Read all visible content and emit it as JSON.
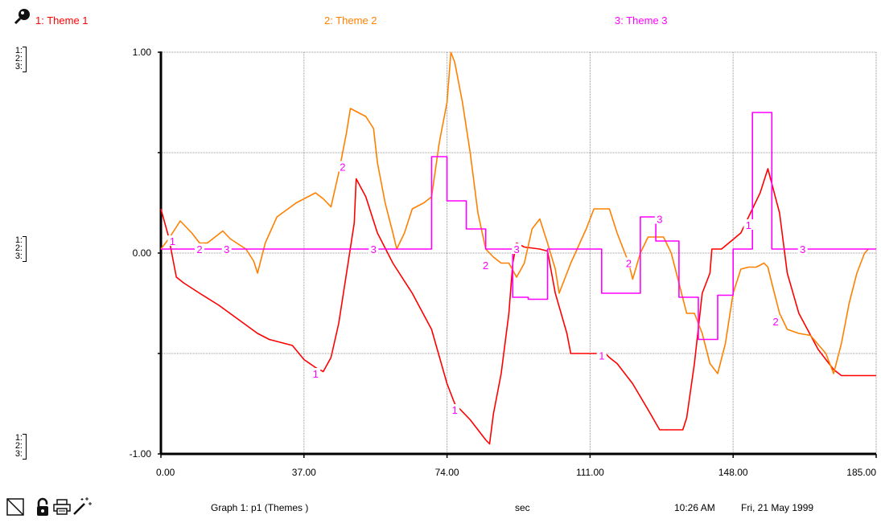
{
  "legend": [
    {
      "label": "1: Theme 1",
      "color": "#ff0000"
    },
    {
      "label": "2: Theme 2",
      "color": "#ff8000"
    },
    {
      "label": "3: Theme 3",
      "color": "#ff00ff"
    }
  ],
  "side_scales": [
    "1:",
    "2:",
    "3:"
  ],
  "footer": {
    "graph_title": "Graph 1: p1 (Themes )",
    "units": "sec",
    "time": "10:26 AM",
    "date": "Fri, 21 May 1999"
  },
  "icons": [
    "magnifier-icon",
    "pencil-icon",
    "lock-icon",
    "printer-icon",
    "magic-wand-icon"
  ],
  "chart_data": {
    "type": "line",
    "xlim": [
      0,
      185
    ],
    "ylim": [
      -1,
      1
    ],
    "x_ticks": [
      "0.00",
      "37.00",
      "74.00",
      "111.00",
      "148.00",
      "185.00"
    ],
    "y_ticks": [
      "1.00",
      "0.00",
      "-1.00"
    ],
    "grid": true,
    "series": [
      {
        "name": "Theme 1",
        "color": "#ff0000",
        "marker": "1",
        "points": [
          [
            0,
            0.22
          ],
          [
            1,
            0.15
          ],
          [
            2,
            0.08
          ],
          [
            4,
            -0.12
          ],
          [
            6,
            -0.15
          ],
          [
            10,
            -0.2
          ],
          [
            15,
            -0.26
          ],
          [
            20,
            -0.33
          ],
          [
            25,
            -0.4
          ],
          [
            28,
            -0.43
          ],
          [
            30,
            -0.44
          ],
          [
            34,
            -0.46
          ],
          [
            37,
            -0.53
          ],
          [
            40,
            -0.57
          ],
          [
            42,
            -0.59
          ],
          [
            44,
            -0.52
          ],
          [
            46,
            -0.35
          ],
          [
            48,
            -0.1
          ],
          [
            50,
            0.15
          ],
          [
            50.5,
            0.37
          ],
          [
            53,
            0.28
          ],
          [
            56,
            0.1
          ],
          [
            60,
            -0.05
          ],
          [
            65,
            -0.2
          ],
          [
            70,
            -0.38
          ],
          [
            74,
            -0.65
          ],
          [
            76,
            -0.75
          ],
          [
            80,
            -0.83
          ],
          [
            84,
            -0.93
          ],
          [
            85,
            -0.95
          ],
          [
            86,
            -0.8
          ],
          [
            88,
            -0.6
          ],
          [
            90,
            -0.3
          ],
          [
            91,
            -0.05
          ],
          [
            92,
            0.05
          ],
          [
            94,
            0.03
          ],
          [
            98,
            0.02
          ],
          [
            100,
            0.01
          ],
          [
            102,
            -0.2
          ],
          [
            105,
            -0.4
          ],
          [
            106,
            -0.5
          ],
          [
            110,
            -0.5
          ],
          [
            115,
            -0.5
          ],
          [
            116,
            -0.52
          ],
          [
            118,
            -0.55
          ],
          [
            122,
            -0.65
          ],
          [
            126,
            -0.78
          ],
          [
            129,
            -0.88
          ],
          [
            132,
            -0.88
          ],
          [
            135,
            -0.88
          ],
          [
            136,
            -0.82
          ],
          [
            138,
            -0.55
          ],
          [
            140,
            -0.2
          ],
          [
            142,
            -0.1
          ],
          [
            142.5,
            0.02
          ],
          [
            145,
            0.02
          ],
          [
            150,
            0.1
          ],
          [
            155,
            0.3
          ],
          [
            157,
            0.42
          ],
          [
            160,
            0.2
          ],
          [
            162,
            -0.1
          ],
          [
            165,
            -0.3
          ],
          [
            170,
            -0.48
          ],
          [
            174,
            -0.58
          ],
          [
            176,
            -0.61
          ],
          [
            180,
            -0.61
          ],
          [
            185,
            -0.61
          ]
        ]
      },
      {
        "name": "Theme 2",
        "color": "#ff8000",
        "marker": "2",
        "points": [
          [
            0,
            0.02
          ],
          [
            2,
            0.07
          ],
          [
            5,
            0.16
          ],
          [
            8,
            0.1
          ],
          [
            10,
            0.05
          ],
          [
            12,
            0.05
          ],
          [
            14,
            0.08
          ],
          [
            16,
            0.11
          ],
          [
            18,
            0.07
          ],
          [
            22,
            0.02
          ],
          [
            24,
            -0.04
          ],
          [
            25,
            -0.1
          ],
          [
            27,
            0.05
          ],
          [
            30,
            0.18
          ],
          [
            35,
            0.25
          ],
          [
            40,
            0.3
          ],
          [
            42,
            0.27
          ],
          [
            44,
            0.23
          ],
          [
            46,
            0.4
          ],
          [
            48,
            0.6
          ],
          [
            49,
            0.72
          ],
          [
            53,
            0.68
          ],
          [
            55,
            0.62
          ],
          [
            56,
            0.45
          ],
          [
            58,
            0.25
          ],
          [
            60,
            0.1
          ],
          [
            61,
            0.02
          ],
          [
            63,
            0.1
          ],
          [
            65,
            0.22
          ],
          [
            68,
            0.25
          ],
          [
            70,
            0.28
          ],
          [
            72,
            0.55
          ],
          [
            74,
            0.75
          ],
          [
            75,
            1.0
          ],
          [
            76,
            0.95
          ],
          [
            78,
            0.75
          ],
          [
            80,
            0.5
          ],
          [
            82,
            0.2
          ],
          [
            84,
            0.02
          ],
          [
            86,
            -0.02
          ],
          [
            88,
            -0.05
          ],
          [
            90,
            -0.05
          ],
          [
            92,
            -0.12
          ],
          [
            94,
            -0.05
          ],
          [
            96,
            0.12
          ],
          [
            98,
            0.17
          ],
          [
            100,
            0.05
          ],
          [
            102,
            -0.08
          ],
          [
            103,
            -0.2
          ],
          [
            106,
            -0.05
          ],
          [
            110,
            0.12
          ],
          [
            112,
            0.22
          ],
          [
            116,
            0.22
          ],
          [
            118,
            0.1
          ],
          [
            121,
            -0.05
          ],
          [
            122,
            -0.13
          ],
          [
            124,
            0.0
          ],
          [
            126,
            0.08
          ],
          [
            128,
            0.08
          ],
          [
            130,
            0.08
          ],
          [
            132,
            0.0
          ],
          [
            134,
            -0.15
          ],
          [
            136,
            -0.3
          ],
          [
            138,
            -0.3
          ],
          [
            140,
            -0.4
          ],
          [
            142,
            -0.55
          ],
          [
            144,
            -0.6
          ],
          [
            146,
            -0.45
          ],
          [
            148,
            -0.2
          ],
          [
            150,
            -0.08
          ],
          [
            152,
            -0.07
          ],
          [
            154,
            -0.07
          ],
          [
            156,
            -0.05
          ],
          [
            157,
            -0.07
          ],
          [
            158,
            -0.15
          ],
          [
            160,
            -0.3
          ],
          [
            162,
            -0.38
          ],
          [
            165,
            -0.4
          ],
          [
            168,
            -0.41
          ],
          [
            172,
            -0.5
          ],
          [
            174,
            -0.6
          ],
          [
            176,
            -0.45
          ],
          [
            178,
            -0.25
          ],
          [
            180,
            -0.1
          ],
          [
            182,
            0.0
          ],
          [
            183,
            0.02
          ]
        ]
      },
      {
        "name": "Theme 3",
        "color": "#ff00ff",
        "marker": "3",
        "points": [
          [
            0,
            0.02
          ],
          [
            70,
            0.02
          ],
          [
            70,
            0.48
          ],
          [
            74,
            0.48
          ],
          [
            74,
            0.26
          ],
          [
            79,
            0.26
          ],
          [
            79,
            0.12
          ],
          [
            84,
            0.12
          ],
          [
            84,
            0.02
          ],
          [
            91,
            0.02
          ],
          [
            91,
            -0.22
          ],
          [
            95,
            -0.22
          ],
          [
            95,
            -0.23
          ],
          [
            100,
            -0.23
          ],
          [
            100,
            0.02
          ],
          [
            114,
            0.02
          ],
          [
            114,
            -0.2
          ],
          [
            124,
            -0.2
          ],
          [
            124,
            0.18
          ],
          [
            128,
            0.18
          ],
          [
            128,
            0.06
          ],
          [
            134,
            0.06
          ],
          [
            134,
            -0.22
          ],
          [
            139,
            -0.22
          ],
          [
            139,
            -0.43
          ],
          [
            144,
            -0.43
          ],
          [
            144,
            -0.21
          ],
          [
            148,
            -0.21
          ],
          [
            148,
            0.02
          ],
          [
            153,
            0.02
          ],
          [
            153,
            0.7
          ],
          [
            158,
            0.7
          ],
          [
            158,
            0.02
          ],
          [
            185,
            0.02
          ]
        ]
      }
    ],
    "labels": [
      {
        "series": 1,
        "text": "1",
        "x": 3,
        "y": 0.06
      },
      {
        "series": 1,
        "text": "1",
        "x": 40,
        "y": -0.6
      },
      {
        "series": 1,
        "text": "1",
        "x": 76,
        "y": -0.78
      },
      {
        "series": 1,
        "text": "1",
        "x": 114,
        "y": -0.51
      },
      {
        "series": 1,
        "text": "1",
        "x": 152,
        "y": 0.14
      },
      {
        "series": 2,
        "text": "2",
        "x": 10,
        "y": 0.02
      },
      {
        "series": 2,
        "text": "2",
        "x": 47,
        "y": 0.43
      },
      {
        "series": 2,
        "text": "2",
        "x": 84,
        "y": -0.06
      },
      {
        "series": 2,
        "text": "2",
        "x": 121,
        "y": -0.05
      },
      {
        "series": 2,
        "text": "2",
        "x": 159,
        "y": -0.34
      },
      {
        "series": 3,
        "text": "3",
        "x": 17,
        "y": 0.02
      },
      {
        "series": 3,
        "text": "3",
        "x": 55,
        "y": 0.02
      },
      {
        "series": 3,
        "text": "3",
        "x": 92,
        "y": 0.02
      },
      {
        "series": 3,
        "text": "3",
        "x": 129,
        "y": 0.17
      },
      {
        "series": 3,
        "text": "3",
        "x": 166,
        "y": 0.02
      }
    ]
  }
}
